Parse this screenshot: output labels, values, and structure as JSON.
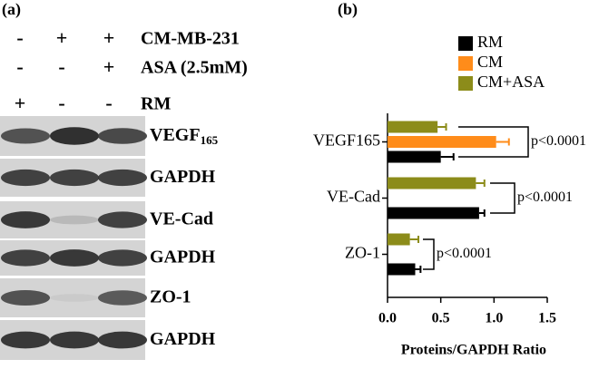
{
  "panel_a": {
    "label": "(a)",
    "conditions": [
      {
        "signs": [
          "-",
          "+",
          "+"
        ],
        "label": "CM-MB-231"
      },
      {
        "signs": [
          "-",
          "-",
          "+"
        ],
        "label": "ASA (2.5mM)"
      },
      {
        "signs": [
          "+",
          "-",
          "-"
        ],
        "label": "RM"
      }
    ],
    "bands": [
      {
        "name": "VEGF",
        "sub": "165"
      },
      {
        "name": "GAPDH"
      },
      {
        "name": "VE-Cad"
      },
      {
        "name": "GAPDH"
      },
      {
        "name": "ZO-1"
      },
      {
        "name": "GAPDH"
      }
    ]
  },
  "chart_data": {
    "type": "hbar",
    "panel_label": "(b)",
    "categories": [
      "VEGF165",
      "VE-Cad",
      "ZO-1"
    ],
    "series": [
      {
        "name": "RM",
        "color": "#000000",
        "values": [
          0.5,
          0.86,
          0.26
        ],
        "errors": [
          0.12,
          0.05,
          0.05
        ]
      },
      {
        "name": "CM",
        "color": "#ff8c1a",
        "values": [
          1.02,
          null,
          null
        ],
        "errors": [
          0.12,
          null,
          null
        ]
      },
      {
        "name": "CM+ASA",
        "color": "#8c8c1a",
        "values": [
          0.47,
          0.83,
          0.21
        ],
        "errors": [
          0.08,
          0.08,
          0.08
        ]
      }
    ],
    "xlim": [
      0,
      1.5
    ],
    "xticks": [
      {
        "value": 0,
        "label": "0.0"
      },
      0.5,
      {
        "value": 1,
        "label": "1.0"
      },
      1.5
    ],
    "xlabel": "Proteins/GAPDH Ratio",
    "annotations": [
      "p<0.0001",
      "p<0.0001",
      "p<0.0001"
    ]
  }
}
